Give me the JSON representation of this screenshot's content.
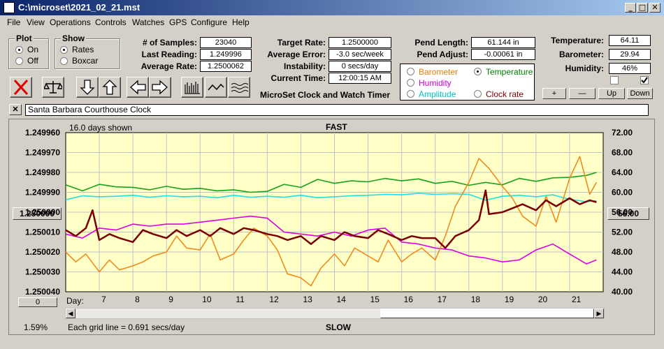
{
  "window": {
    "title": "C:\\microset\\2021_02_21.mst"
  },
  "menu": [
    "File",
    "View",
    "Operations",
    "Controls",
    "Watches",
    "GPS",
    "Configure",
    "Help"
  ],
  "plot_group": {
    "label": "Plot",
    "options": [
      "On",
      "Off"
    ],
    "selected": "On"
  },
  "show_group": {
    "label": "Show",
    "options": [
      "Rates",
      "Boxcar"
    ],
    "selected": "Rates"
  },
  "stats": {
    "samples_label": "# of Samples:",
    "samples": "23040",
    "last_reading_label": "Last Reading:",
    "last_reading": "1.249996",
    "average_rate_label": "Average Rate:",
    "average_rate": "1.2500062",
    "target_rate_label": "Target Rate:",
    "target_rate": "1.2500000",
    "average_error_label": "Average Error:",
    "average_error": "-3.0 sec/week",
    "instability_label": "Instability:",
    "instability": "0 secs/day",
    "current_time_label": "Current Time:",
    "current_time": "12:00:15 AM",
    "pend_length_label": "Pend Length:",
    "pend_length": "61.144 in",
    "pend_adjust_label": "Pend Adjust:",
    "pend_adjust": "-0.00061 in",
    "temperature_label": "Temperature:",
    "temperature": "64.11",
    "barometer_label": "Barometer:",
    "barometer": "29.94",
    "humidity_label": "Humidity:",
    "humidity": "46%"
  },
  "program_name": "MicroSet Clock and Watch Timer",
  "sensor_options": [
    {
      "label": "Barometer",
      "color": "#e67e00",
      "selected": false
    },
    {
      "label": "Temperature",
      "color": "#008000",
      "selected": true
    },
    {
      "label": "Humidity",
      "color": "#d000d0",
      "selected": false
    },
    {
      "label": "Amplitude",
      "color": "#00c0c0",
      "selected": false
    },
    {
      "label": "Clock rate",
      "color": "#800000",
      "selected": false
    }
  ],
  "scale_buttons": {
    "plus": "+",
    "minus": "—",
    "up": "Up",
    "down": "Down"
  },
  "checkboxes": [
    false,
    true
  ],
  "clock_name": "Santa Barbara Courthouse Clock",
  "clear_button": "✕",
  "chart_labels": {
    "days_shown": "16.0 days shown",
    "top": "FAST",
    "bottom": "SLOW",
    "day_label": "Day:",
    "grid_info": "Each grid line = 0.691 secs/day",
    "left_button": "1.250000",
    "right_button": "56.00",
    "bottom_left_button": "0",
    "percent": "1.59%"
  },
  "chart_data": {
    "type": "line",
    "x_label": "Day",
    "x_ticks": [
      7,
      8,
      9,
      10,
      11,
      12,
      13,
      14,
      15,
      16,
      17,
      18,
      19,
      20,
      21
    ],
    "xlim": [
      6.0,
      22.0
    ],
    "y_left_ticks": [
      "1.249960",
      "1.249970",
      "1.249980",
      "1.249990",
      "1.250000",
      "1.250010",
      "1.250020",
      "1.250030",
      "1.250040"
    ],
    "y_left_range": [
      1.24996,
      1.25004
    ],
    "y_right_ticks": [
      "72.00",
      "68.00",
      "64.00",
      "60.00",
      "56.00",
      "52.00",
      "48.00",
      "44.00",
      "40.00"
    ],
    "y_right_range": [
      72,
      40
    ],
    "series": [
      {
        "name": "Temperature",
        "color": "#1aa01a",
        "axis": "right",
        "x": [
          6.0,
          6.5,
          7.0,
          7.5,
          8.0,
          8.5,
          9.0,
          9.5,
          10.0,
          10.5,
          11.0,
          11.5,
          12.0,
          12.5,
          13.0,
          13.5,
          14.0,
          14.5,
          15.0,
          15.5,
          16.0,
          16.5,
          17.0,
          17.5,
          18.0,
          18.5,
          19.0,
          19.5,
          20.0,
          20.5,
          21.0,
          21.5,
          21.8
        ],
        "y": [
          61.5,
          60.3,
          61.6,
          61.1,
          61.0,
          60.5,
          61.2,
          60.6,
          60.8,
          60.3,
          60.5,
          60.0,
          60.2,
          61.6,
          61.0,
          62.6,
          61.8,
          62.3,
          62.1,
          62.8,
          62.3,
          62.7,
          61.8,
          62.2,
          61.4,
          62.0,
          61.5,
          62.8,
          62.2,
          62.9,
          63.0,
          63.4,
          64.0
        ]
      },
      {
        "name": "Amplitude",
        "color": "#20e0e0",
        "axis": "right",
        "x": [
          6.0,
          6.5,
          7.0,
          7.5,
          8.0,
          8.5,
          9.0,
          9.5,
          10.0,
          10.5,
          11.0,
          11.5,
          12.0,
          12.5,
          13.0,
          13.5,
          14.0,
          14.5,
          15.0,
          15.5,
          16.0,
          16.5,
          17.0,
          17.5,
          18.0,
          18.5,
          19.0,
          19.5,
          20.0,
          20.5,
          21.0,
          21.5,
          21.8
        ],
        "y": [
          58.5,
          59.3,
          59.1,
          59.2,
          59.4,
          59.0,
          59.3,
          59.1,
          59.2,
          58.9,
          59.4,
          59.0,
          59.2,
          59.0,
          59.4,
          58.9,
          59.1,
          59.3,
          59.4,
          59.6,
          59.5,
          59.8,
          59.6,
          59.7,
          59.6,
          58.4,
          59.2,
          59.4,
          59.1,
          59.5,
          58.6,
          58.1,
          58.3
        ]
      },
      {
        "name": "Humidity",
        "color": "#e000e0",
        "axis": "left",
        "x": [
          6.0,
          6.5,
          7.0,
          7.5,
          8.0,
          8.5,
          9.0,
          9.5,
          10.0,
          10.5,
          11.0,
          11.5,
          12.0,
          12.5,
          13.0,
          13.5,
          14.0,
          14.5,
          15.0,
          15.5,
          16.0,
          16.5,
          17.0,
          17.5,
          18.0,
          18.5,
          19.0,
          19.5,
          20.0,
          20.5,
          21.0,
          21.5,
          21.8
        ],
        "y": [
          1.250011,
          1.250013,
          1.250008,
          1.250009,
          1.250006,
          1.250007,
          1.250006,
          1.250006,
          1.250005,
          1.250004,
          1.250003,
          1.250002,
          1.250003,
          1.25001,
          1.250011,
          1.250012,
          1.25001,
          1.250012,
          1.250009,
          1.250008,
          1.250015,
          1.250016,
          1.250018,
          1.250019,
          1.250022,
          1.250023,
          1.250025,
          1.250024,
          1.250019,
          1.250016,
          1.250021,
          1.250026,
          1.250024
        ]
      },
      {
        "name": "Barometer",
        "color": "#f08c1e",
        "axis": "left",
        "x": [
          6.0,
          6.3,
          6.6,
          7.0,
          7.3,
          7.6,
          8.0,
          8.3,
          8.6,
          9.0,
          9.3,
          9.6,
          10.0,
          10.3,
          10.6,
          11.0,
          11.3,
          11.6,
          12.0,
          12.3,
          12.6,
          13.0,
          13.3,
          13.6,
          14.0,
          14.3,
          14.6,
          15.0,
          15.3,
          15.6,
          16.0,
          16.3,
          16.6,
          17.0,
          17.3,
          17.6,
          18.0,
          18.3,
          18.6,
          19.0,
          19.3,
          19.6,
          20.0,
          20.3,
          20.6,
          21.0,
          21.3,
          21.6,
          21.8
        ],
        "y": [
          1.25002,
          1.250025,
          1.250021,
          1.25003,
          1.250024,
          1.250029,
          1.250027,
          1.250025,
          1.250022,
          1.25002,
          1.250012,
          1.250018,
          1.250019,
          1.250011,
          1.250024,
          1.250021,
          1.250014,
          1.250008,
          1.250012,
          1.250019,
          1.250031,
          1.250033,
          1.250037,
          1.250028,
          1.250021,
          1.250027,
          1.250018,
          1.250022,
          1.250025,
          1.250014,
          1.250025,
          1.250021,
          1.250018,
          1.250024,
          1.250012,
          1.249997,
          1.249985,
          1.249973,
          1.249978,
          1.249987,
          1.249993,
          1.250002,
          1.250007,
          1.249992,
          1.250005,
          1.249983,
          1.249972,
          1.249991,
          1.249985
        ]
      },
      {
        "name": "Clock rate",
        "color": "#7a0000",
        "axis": "left",
        "x": [
          6.0,
          6.3,
          6.6,
          6.8,
          7.0,
          7.3,
          7.6,
          8.0,
          8.3,
          8.6,
          9.0,
          9.3,
          9.6,
          10.0,
          10.3,
          10.6,
          11.0,
          11.3,
          11.6,
          12.0,
          12.3,
          12.6,
          13.0,
          13.3,
          13.6,
          14.0,
          14.3,
          14.6,
          15.0,
          15.3,
          15.6,
          16.0,
          16.3,
          16.6,
          17.0,
          17.3,
          17.6,
          18.0,
          18.3,
          18.5,
          18.6,
          19.0,
          19.3,
          19.6,
          20.0,
          20.3,
          20.6,
          21.0,
          21.3,
          21.6,
          21.8
        ],
        "y": [
          1.250009,
          1.250012,
          1.250008,
          1.249999,
          1.250014,
          1.250011,
          1.250013,
          1.250015,
          1.250009,
          1.250011,
          1.250013,
          1.250009,
          1.250012,
          1.250009,
          1.250012,
          1.250008,
          1.250011,
          1.250008,
          1.250009,
          1.250011,
          1.250012,
          1.250014,
          1.250012,
          1.250016,
          1.250012,
          1.250014,
          1.25001,
          1.250012,
          1.250013,
          1.250009,
          1.250011,
          1.250014,
          1.250012,
          1.250013,
          1.250013,
          1.250018,
          1.250012,
          1.250009,
          1.250004,
          1.249989,
          1.250001,
          1.25,
          1.249998,
          1.249996,
          1.249999,
          1.249994,
          1.249997,
          1.249993,
          1.249996,
          1.249994,
          1.249995
        ]
      }
    ]
  }
}
